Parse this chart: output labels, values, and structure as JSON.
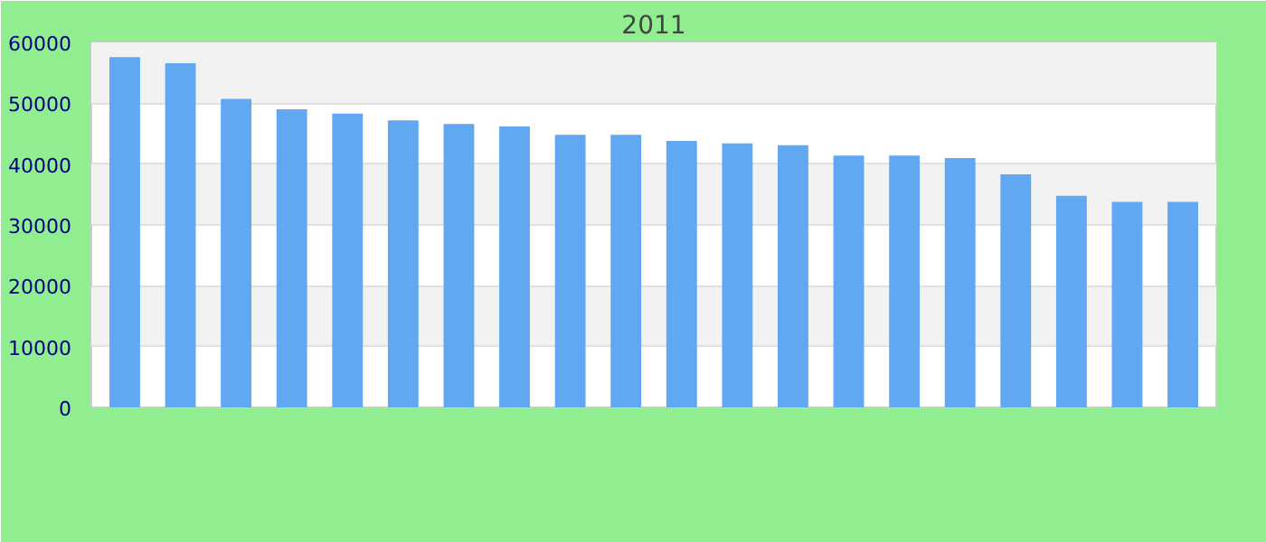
{
  "chart_data": {
    "type": "bar",
    "subtitle": "2011",
    "categories": [
      null,
      null,
      null,
      null,
      null,
      null,
      null,
      null,
      null,
      null,
      null,
      null,
      null,
      null,
      null,
      null,
      null,
      null,
      null,
      null
    ],
    "values": [
      57600,
      56600,
      50700,
      49000,
      48300,
      47200,
      46600,
      46200,
      44800,
      44800,
      43800,
      43400,
      43100,
      41400,
      41400,
      41000,
      38300,
      34800,
      33800,
      33800
    ],
    "color": "#61a8f2",
    "ylim": [
      0,
      60000
    ],
    "yticks": [
      0,
      10000,
      20000,
      30000,
      40000,
      50000,
      60000
    ],
    "grid": "y"
  }
}
